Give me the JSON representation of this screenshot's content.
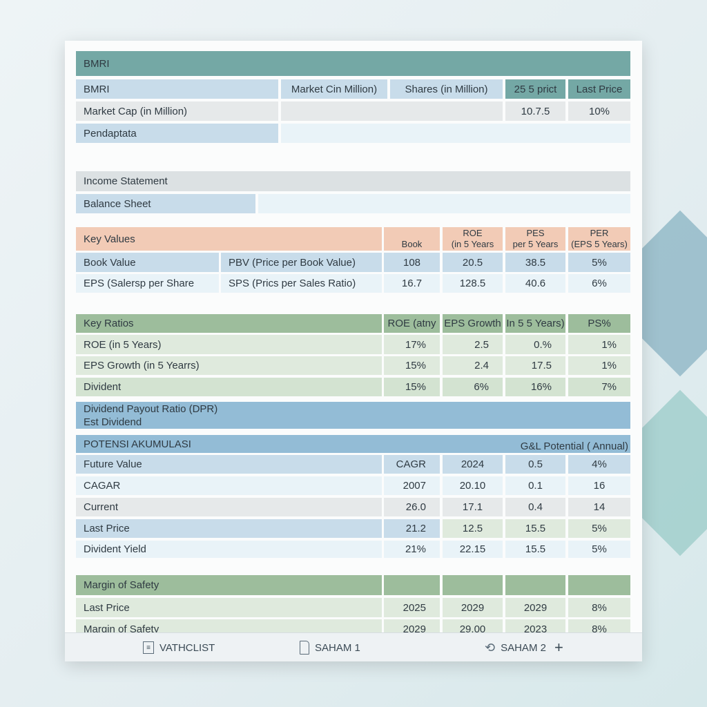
{
  "colors": {
    "teal": "#74a8a5",
    "blue": "#c8dcea",
    "lightblue": "#e9f3f8",
    "grey": "#e6e9ea",
    "peach": "#f2cbb6",
    "green": "#9dbd9c",
    "lightgreen": "#dfeadd",
    "steel": "#93bcd6"
  },
  "overview": {
    "header": "BMRI",
    "row1": [
      "BMRI",
      "Market Cin Million)",
      "Shares (in Million)",
      "25 5 prict",
      "Last Price"
    ],
    "row2": [
      "Market Cap (in Million)",
      "",
      "10.7.5",
      "10%"
    ],
    "row3": [
      "Pendaptata"
    ]
  },
  "statements": {
    "income": "Income Statement",
    "balance": "Balance Sheet"
  },
  "key_values": {
    "header": [
      "Key Values",
      "Book",
      "ROE\n(in 5 Years",
      "PES\nper 5 Years",
      "PER\n(EPS 5 Years)"
    ],
    "rows": [
      [
        "Book Value",
        "PBV (Price per Book Value)",
        "108",
        "20.5",
        "38.5",
        "5%"
      ],
      [
        "EPS (Salersp per Share",
        "SPS (Prics per Sales Ratio)",
        "16.7",
        "128.5",
        "40.6",
        "6%"
      ]
    ]
  },
  "key_ratios": {
    "header": [
      "Key Ratios",
      "ROE (atny",
      "EPS Growth",
      "In 5 5 Years)",
      "PS%"
    ],
    "rows": [
      [
        "ROE (in 5 Years)",
        "17%",
        "2.5",
        "0.%",
        "1%"
      ],
      [
        "EPS Growth (in 5 Yearrs)",
        "15%",
        "2.4",
        "17.5",
        "1%"
      ],
      [
        "Divident",
        "15%",
        "6%",
        "16%",
        "7%"
      ]
    ]
  },
  "dividend": {
    "line1": "Dividend Payout Ratio (DPR)",
    "line2": "Est Dividend"
  },
  "potensi": {
    "title": "POTENSI AKUMULASI",
    "right": "G&L Potential ( Annual)",
    "rows": [
      [
        "Future Value",
        "CAGR",
        "2024",
        "0.5",
        "4%"
      ],
      [
        "CAGAR",
        "2007",
        "20.10",
        "0.1",
        "16"
      ],
      [
        "Current",
        "26.0",
        "17.1",
        "0.4",
        "14"
      ],
      [
        "Last Price",
        "21.2",
        "12.5",
        "15.5",
        "5%"
      ],
      [
        "Divident Yield",
        "21%",
        "22.15",
        "15.5",
        "5%"
      ]
    ]
  },
  "margin": {
    "header": [
      "Margin of Safety",
      "",
      "",
      "",
      ""
    ],
    "rows": [
      [
        "Last Price",
        "2025",
        "2029",
        "2029",
        "8%"
      ],
      [
        "Margin of Safety",
        "2029",
        "29.00",
        "2023",
        "8%"
      ]
    ]
  },
  "tabs": [
    {
      "label": "VATHCLIST",
      "icon": "clipboard-icon"
    },
    {
      "label": "SAHAM 1",
      "icon": "document-icon"
    },
    {
      "label": "SAHAM 2",
      "icon": "refresh-document-icon"
    }
  ],
  "add_tab": "+"
}
